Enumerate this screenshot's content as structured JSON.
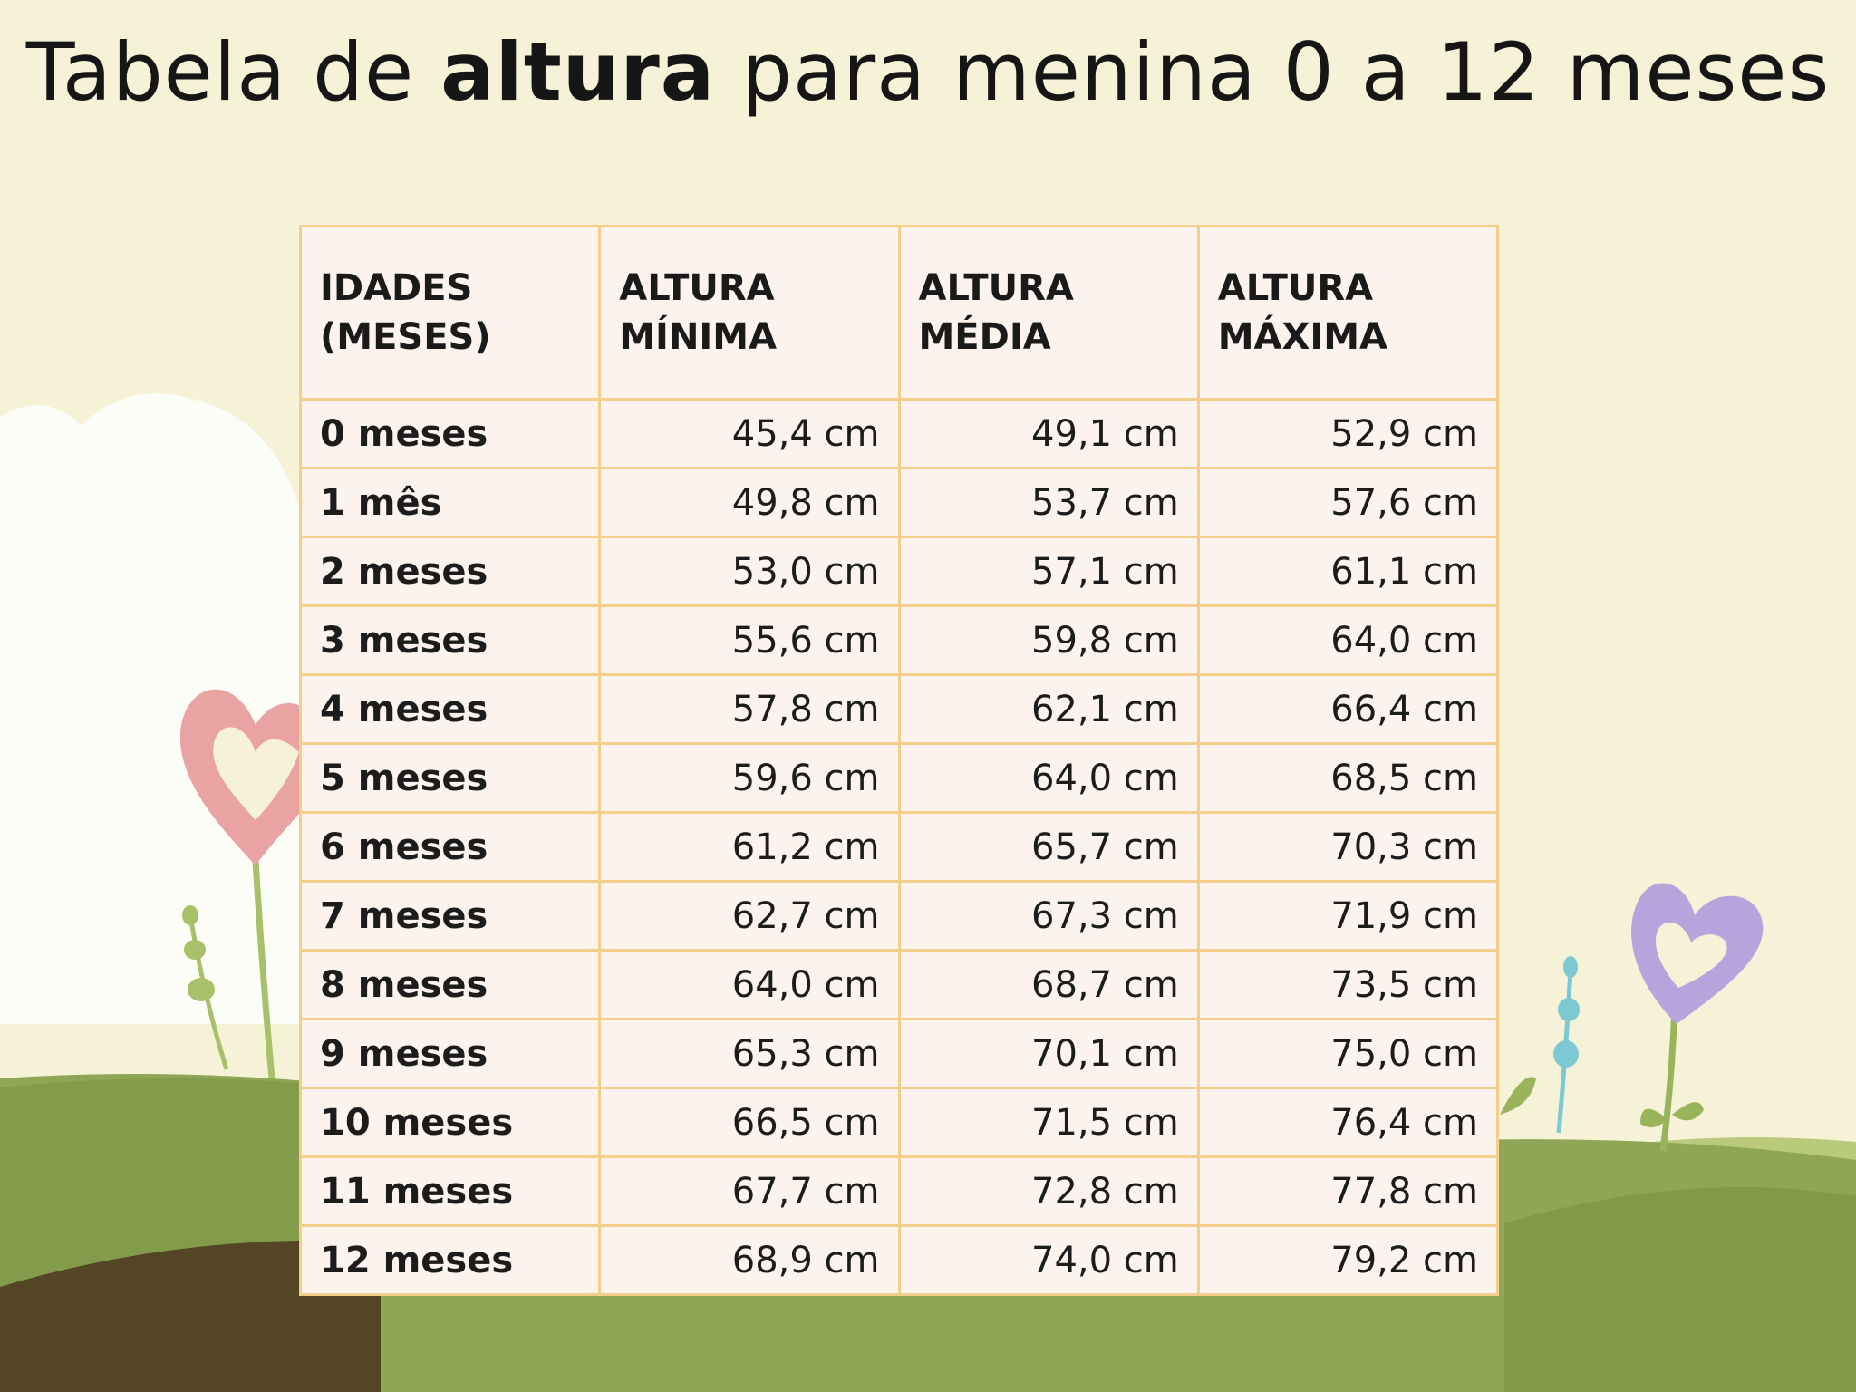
{
  "title": {
    "part1": "Tabela de ",
    "bold": "altura",
    "part2": " para menina 0 a 12 meses"
  },
  "table": {
    "headers": [
      "IDADES\n(MESES)",
      "ALTURA\nMÍNIMA",
      "ALTURA\nMÉDIA",
      "ALTURA\nMÁXIMA"
    ],
    "rows": [
      [
        "0 meses",
        "45,4 cm",
        "49,1 cm",
        "52,9 cm"
      ],
      [
        "1 mês",
        "49,8 cm",
        "53,7 cm",
        "57,6 cm"
      ],
      [
        "2 meses",
        "53,0 cm",
        "57,1 cm",
        "61,1 cm"
      ],
      [
        "3 meses",
        "55,6 cm",
        "59,8 cm",
        "64,0 cm"
      ],
      [
        "4 meses",
        "57,8 cm",
        "62,1 cm",
        "66,4 cm"
      ],
      [
        "5 meses",
        "59,6 cm",
        "64,0 cm",
        "68,5 cm"
      ],
      [
        "6 meses",
        "61,2 cm",
        "65,7 cm",
        "70,3 cm"
      ],
      [
        "7 meses",
        "62,7 cm",
        "67,3 cm",
        "71,9 cm"
      ],
      [
        "8 meses",
        "64,0 cm",
        "68,7 cm",
        "73,5 cm"
      ],
      [
        "9 meses",
        "65,3 cm",
        "70,1 cm",
        "75,0 cm"
      ],
      [
        "10 meses",
        "66,5 cm",
        "71,5 cm",
        "76,4 cm"
      ],
      [
        "11 meses",
        "67,7 cm",
        "72,8 cm",
        "77,8 cm"
      ],
      [
        "12 meses",
        "68,9 cm",
        "74,0 cm",
        "79,2 cm"
      ]
    ]
  },
  "colors": {
    "background": "#f6f2d8",
    "table_fill": "#fdf3ee",
    "table_border": "#f4cf8c",
    "hill_light": "#b6c777",
    "hill_dark": "#7e9a45",
    "path_brown": "#544524",
    "pink_heart": "#e9a3a3",
    "purple_heart": "#b7a4dc",
    "teal_buds": "#7cc9d3"
  }
}
